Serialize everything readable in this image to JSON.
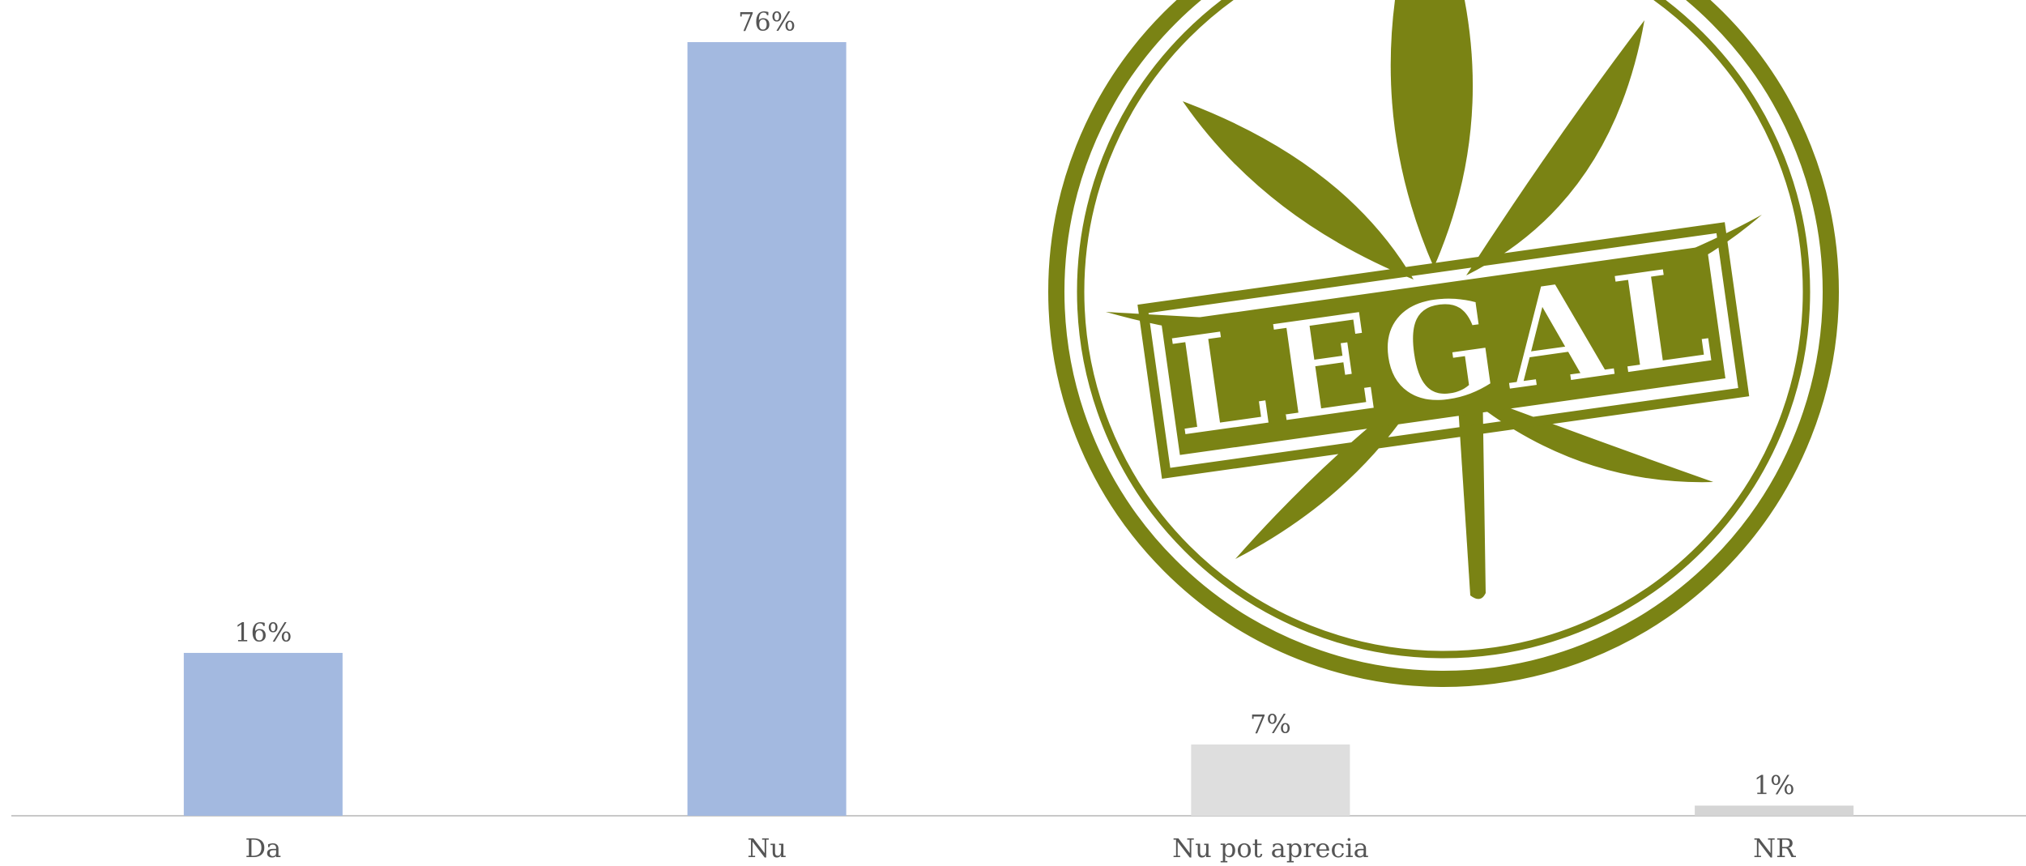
{
  "chart_data": {
    "type": "bar",
    "categories": [
      "Da",
      "Nu",
      "Nu pot aprecia",
      "NR"
    ],
    "values": [
      16,
      76,
      7,
      1
    ],
    "data_labels": [
      "16%",
      "76%",
      "7%",
      "1%"
    ],
    "title": "",
    "xlabel": "",
    "ylabel": "",
    "ylim": [
      0,
      76
    ],
    "grid": false,
    "legend": "none",
    "colors": [
      "#a3b9e0",
      "#a3b9e0",
      "#dedede",
      "#d5d5d5"
    ],
    "axis_color": "#c8c8c8",
    "label_color": "#555555"
  },
  "stamp": {
    "text": "LEGAL",
    "icon": "cannabis-leaf-icon",
    "color": "#7a8314"
  }
}
